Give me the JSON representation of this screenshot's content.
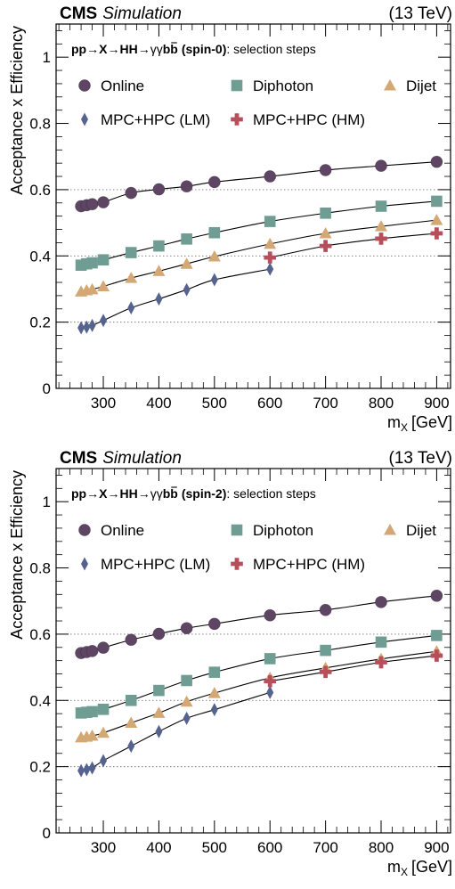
{
  "chart_data": [
    {
      "type": "line",
      "experiment": "CMS",
      "status": "Simulation",
      "energy": "(13 TeV)",
      "process_html_parts": [
        "pp",
        "→",
        "X",
        "→",
        "HH",
        "→",
        "γγ",
        "b",
        "b",
        "(spin-0)"
      ],
      "title_suffix": ": selection steps",
      "xlabel_main": "m",
      "xlabel_sub": "X",
      "xlabel_unit": "[GeV]",
      "ylabel": "Acceptance x Efficiency",
      "xlim": [
        215,
        925
      ],
      "ylim": [
        0,
        1.1
      ],
      "x_ticks": [
        300,
        400,
        500,
        600,
        700,
        800,
        900
      ],
      "y_ticks": [
        0,
        0.2,
        0.4,
        0.6,
        0.8,
        1
      ],
      "y_tick_labels": [
        "0",
        "0.2",
        "0.4",
        "0.6",
        "0.8",
        "1"
      ],
      "grid": "dotted horizontal at 0.2, 0.4, 0.6",
      "legend_position": "top",
      "x": [
        260,
        270,
        280,
        300,
        350,
        400,
        450,
        500,
        600,
        700,
        800,
        900
      ],
      "series": [
        {
          "name": "Online",
          "marker": "circle",
          "color": "#5d4563",
          "values": [
            0.55,
            0.553,
            0.556,
            0.562,
            0.59,
            0.601,
            0.61,
            0.623,
            0.64,
            0.659,
            0.672,
            0.684
          ]
        },
        {
          "name": "Diphoton",
          "marker": "square",
          "color": "#6f9d94",
          "values": [
            0.372,
            0.376,
            0.379,
            0.388,
            0.41,
            0.43,
            0.451,
            0.47,
            0.504,
            0.529,
            0.55,
            0.565
          ]
        },
        {
          "name": "Dijet",
          "marker": "triangle",
          "color": "#d4a874",
          "values": [
            0.292,
            0.296,
            0.299,
            0.308,
            0.333,
            0.354,
            0.376,
            0.398,
            0.436,
            0.468,
            0.489,
            0.508
          ]
        },
        {
          "name": "MPC+HPC (LM)",
          "marker": "diamond",
          "color": "#56638e",
          "x": [
            260,
            270,
            280,
            300,
            350,
            400,
            450,
            500,
            600
          ],
          "values": [
            0.183,
            0.185,
            0.19,
            0.205,
            0.243,
            0.27,
            0.298,
            0.328,
            0.36
          ]
        },
        {
          "name": "MPC+HPC (HM)",
          "marker": "cross",
          "color": "#b64e5b",
          "x": [
            600,
            700,
            800,
            900
          ],
          "values": [
            0.395,
            0.43,
            0.452,
            0.468
          ]
        }
      ]
    },
    {
      "type": "line",
      "experiment": "CMS",
      "status": "Simulation",
      "energy": "(13 TeV)",
      "process_html_parts": [
        "pp",
        "→",
        "X",
        "→",
        "HH",
        "→",
        "γγ",
        "b",
        "b",
        "(spin-2)"
      ],
      "title_suffix": ": selection steps",
      "xlabel_main": "m",
      "xlabel_sub": "X",
      "xlabel_unit": "[GeV]",
      "ylabel": "Acceptance x Efficiency",
      "xlim": [
        215,
        925
      ],
      "ylim": [
        0,
        1.1
      ],
      "x_ticks": [
        300,
        400,
        500,
        600,
        700,
        800,
        900
      ],
      "y_ticks": [
        0,
        0.2,
        0.4,
        0.6,
        0.8,
        1
      ],
      "y_tick_labels": [
        "0",
        "0.2",
        "0.4",
        "0.6",
        "0.8",
        "1"
      ],
      "grid": "dotted horizontal at 0.2, 0.4, 0.6",
      "legend_position": "top",
      "x": [
        260,
        270,
        280,
        300,
        350,
        400,
        450,
        500,
        600,
        700,
        800,
        900
      ],
      "series": [
        {
          "name": "Online",
          "marker": "circle",
          "color": "#5d4563",
          "values": [
            0.543,
            0.546,
            0.549,
            0.559,
            0.583,
            0.601,
            0.618,
            0.631,
            0.657,
            0.673,
            0.697,
            0.716
          ]
        },
        {
          "name": "Diphoton",
          "marker": "square",
          "color": "#6f9d94",
          "values": [
            0.362,
            0.364,
            0.366,
            0.373,
            0.4,
            0.43,
            0.46,
            0.485,
            0.526,
            0.551,
            0.576,
            0.596
          ]
        },
        {
          "name": "Dijet",
          "marker": "triangle",
          "color": "#d4a874",
          "values": [
            0.288,
            0.29,
            0.293,
            0.302,
            0.332,
            0.362,
            0.396,
            0.422,
            0.468,
            0.498,
            0.525,
            0.548
          ]
        },
        {
          "name": "MPC+HPC (LM)",
          "marker": "diamond",
          "color": "#56638e",
          "x": [
            260,
            270,
            280,
            300,
            350,
            400,
            450,
            500,
            600
          ],
          "values": [
            0.188,
            0.191,
            0.196,
            0.218,
            0.262,
            0.306,
            0.346,
            0.372,
            0.424
          ]
        },
        {
          "name": "MPC+HPC (HM)",
          "marker": "cross",
          "color": "#b64e5b",
          "x": [
            600,
            700,
            800,
            900
          ],
          "values": [
            0.458,
            0.486,
            0.515,
            0.535
          ]
        }
      ]
    }
  ]
}
